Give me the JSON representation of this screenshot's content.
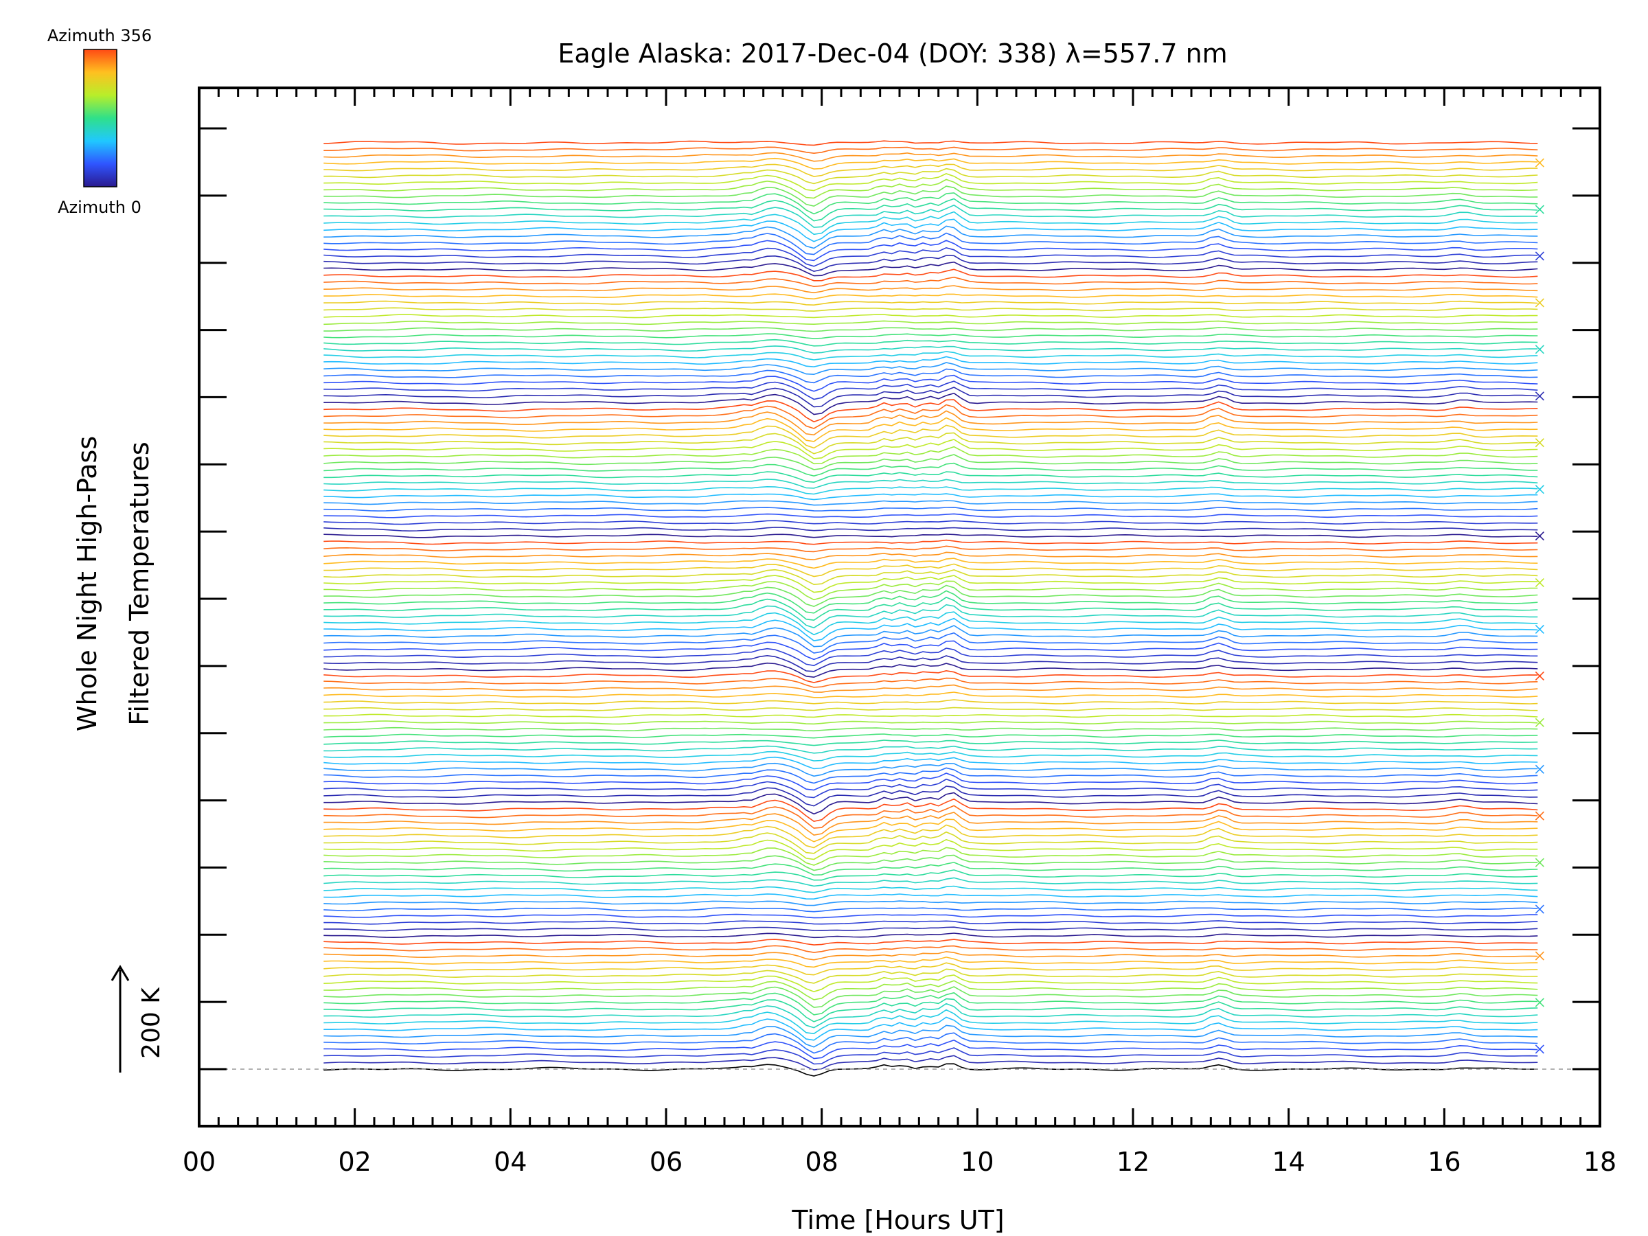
{
  "chart_data": {
    "type": "line",
    "title": "Eagle Alaska: 2017-Dec-04 (DOY: 338) λ=557.7 nm",
    "xlabel": "Time [Hours UT]",
    "ylabel_line1": "Whole Night High-Pass",
    "ylabel_line2": "Filtered Temperatures",
    "xlim": [
      0,
      18
    ],
    "x_ticks": [
      "00",
      "02",
      "04",
      "06",
      "08",
      "10",
      "12",
      "14",
      "16",
      "18"
    ],
    "x_tick_values": [
      0,
      2,
      4,
      6,
      8,
      10,
      12,
      14,
      16,
      18
    ],
    "y_major_tick_count": 15,
    "scale_bar_label": "200 K",
    "colorbar": {
      "top_label": "Azimuth 356",
      "bottom_label": "Azimuth 0",
      "range": [
        0,
        356
      ],
      "colors": [
        "#2a1a8f",
        "#2f55ff",
        "#20c8ff",
        "#2fe08a",
        "#b8ee2a",
        "#ffc020",
        "#ff4a14"
      ]
    },
    "series_count": 140,
    "time_start": 1.6,
    "time_end": 17.2,
    "time_step": 0.1,
    "baseline_color": "#999999",
    "disturbances": [
      {
        "center": 7.35,
        "width": 0.18,
        "amp": 1.0
      },
      {
        "center": 7.9,
        "width": 0.12,
        "amp": -1.3
      },
      {
        "center": 8.8,
        "width": 0.07,
        "amp": 0.6
      },
      {
        "center": 9.05,
        "width": 0.08,
        "amp": 0.7
      },
      {
        "center": 9.35,
        "width": 0.08,
        "amp": 0.7
      },
      {
        "center": 9.65,
        "width": 0.1,
        "amp": 1.2
      },
      {
        "center": 13.1,
        "width": 0.1,
        "amp": 0.7
      },
      {
        "center": 16.2,
        "width": 0.12,
        "amp": 0.3
      }
    ]
  }
}
